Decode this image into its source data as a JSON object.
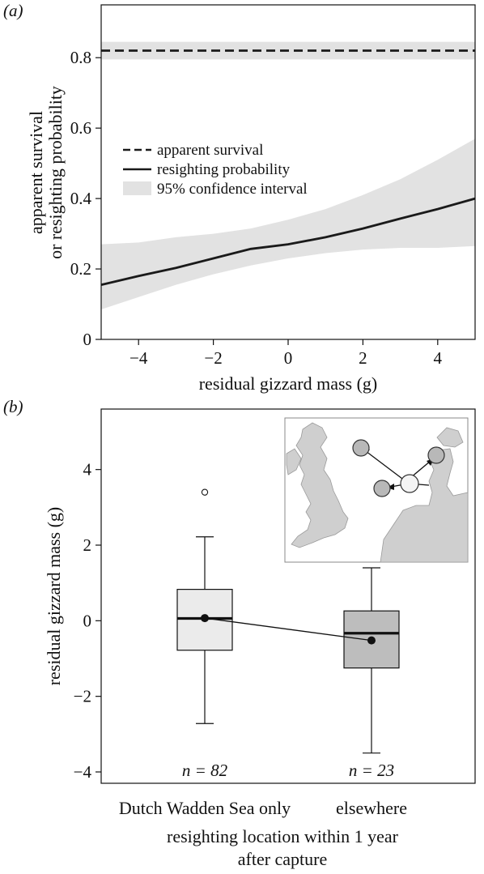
{
  "chart_data": [
    {
      "type": "line",
      "panel_label": "(a)",
      "xlabel": "residual gizzard mass (g)",
      "ylabel_line1": "apparent survival",
      "ylabel_line2": "or resighting probability",
      "xlim": [
        -5,
        5
      ],
      "ylim": [
        0,
        0.95
      ],
      "xticks": [
        -4,
        -2,
        0,
        2,
        4
      ],
      "xtick_labels": [
        "−4",
        "−2",
        "0",
        "2",
        "4"
      ],
      "yticks": [
        0,
        0.2,
        0.4,
        0.6,
        0.8
      ],
      "ytick_labels": [
        "0",
        "0.2",
        "0.4",
        "0.6",
        "0.8"
      ],
      "legend": [
        {
          "label": "apparent survival",
          "style": "dashed"
        },
        {
          "label": "resighting probability",
          "style": "solid"
        },
        {
          "label": "95% confidence interval",
          "style": "band"
        }
      ],
      "series": [
        {
          "name": "apparent survival",
          "x": [
            -5,
            5
          ],
          "y": [
            0.82,
            0.82
          ],
          "ci_lower": [
            0.795,
            0.795
          ],
          "ci_upper": [
            0.845,
            0.845
          ]
        },
        {
          "name": "resighting probability",
          "x": [
            -5,
            -4,
            -3,
            -2,
            -1,
            0,
            1,
            2,
            3,
            4,
            5
          ],
          "y": [
            0.155,
            0.18,
            0.203,
            0.23,
            0.257,
            0.27,
            0.29,
            0.315,
            0.343,
            0.37,
            0.4
          ],
          "ci_lower": [
            0.085,
            0.12,
            0.155,
            0.185,
            0.21,
            0.23,
            0.245,
            0.255,
            0.26,
            0.26,
            0.265
          ],
          "ci_upper": [
            0.27,
            0.275,
            0.29,
            0.3,
            0.315,
            0.34,
            0.37,
            0.41,
            0.455,
            0.51,
            0.57
          ]
        }
      ],
      "colors": {
        "line": "#1a1a1a",
        "band": "#e2e2e2"
      }
    },
    {
      "type": "box",
      "panel_label": "(b)",
      "xlabel_line1": "resighting location within 1 year",
      "xlabel_line2": "after capture",
      "ylabel": "residual gizzard mass (g)",
      "ylim": [
        -4.3,
        5.6
      ],
      "yticks": [
        -4,
        -2,
        0,
        2,
        4
      ],
      "ytick_labels": [
        "−4",
        "−2",
        "0",
        "2",
        "4"
      ],
      "categories": [
        "Dutch Wadden Sea only",
        "elsewhere"
      ],
      "boxes": [
        {
          "category": "Dutch Wadden Sea only",
          "n_label": "n = 82",
          "whisker_low": -2.72,
          "q1": -0.78,
          "median": 0.06,
          "q3": 0.83,
          "whisker_high": 2.22,
          "mean": 0.07,
          "outliers": [
            3.4
          ],
          "fill": "#ebebeb"
        },
        {
          "category": "elsewhere",
          "n_label": "n = 23",
          "whisker_low": -3.5,
          "q1": -1.25,
          "median": -0.33,
          "q3": 0.26,
          "whisker_high": 1.4,
          "mean": -0.52,
          "outliers": [],
          "fill": "#bdbdbd"
        }
      ],
      "inset_map": {
        "type": "map",
        "region": "North Sea region"
      }
    }
  ]
}
